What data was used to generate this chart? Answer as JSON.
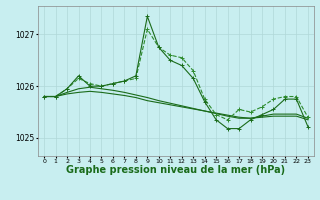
{
  "background_color": "#c8eef0",
  "grid_color": "#b0d8d8",
  "line_color_dark": "#1a6b1a",
  "line_color_medium": "#2d8b2d",
  "xlabel": "Graphe pression niveau de la mer (hPa)",
  "xlabel_fontsize": 7.0,
  "yticks": [
    1025,
    1026,
    1027
  ],
  "xticks": [
    0,
    1,
    2,
    3,
    4,
    5,
    6,
    7,
    8,
    9,
    10,
    11,
    12,
    13,
    14,
    15,
    16,
    17,
    18,
    19,
    20,
    21,
    22,
    23
  ],
  "ylim": [
    1024.65,
    1027.55
  ],
  "xlim": [
    -0.5,
    23.5
  ],
  "series1": [
    1025.8,
    1025.8,
    1025.85,
    1025.88,
    1025.9,
    1025.88,
    1025.85,
    1025.82,
    1025.78,
    1025.72,
    1025.68,
    1025.64,
    1025.6,
    1025.56,
    1025.52,
    1025.48,
    1025.44,
    1025.4,
    1025.38,
    1025.4,
    1025.42,
    1025.42,
    1025.42,
    1025.35
  ],
  "series2": [
    1025.8,
    1025.8,
    1025.88,
    1025.95,
    1025.98,
    1025.95,
    1025.92,
    1025.88,
    1025.83,
    1025.78,
    1025.72,
    1025.67,
    1025.62,
    1025.57,
    1025.52,
    1025.47,
    1025.42,
    1025.38,
    1025.38,
    1025.42,
    1025.46,
    1025.46,
    1025.46,
    1025.38
  ],
  "series3": [
    1025.8,
    1025.8,
    1025.95,
    1026.15,
    1026.05,
    1026.0,
    1026.05,
    1026.1,
    1026.15,
    1027.1,
    1026.75,
    1026.6,
    1026.55,
    1026.3,
    1025.75,
    1025.45,
    1025.35,
    1025.55,
    1025.5,
    1025.6,
    1025.75,
    1025.8,
    1025.8,
    1025.4
  ],
  "series4": [
    1025.8,
    1025.8,
    1025.95,
    1026.2,
    1026.0,
    1026.0,
    1026.05,
    1026.1,
    1026.2,
    1027.35,
    1026.75,
    1026.5,
    1026.4,
    1026.15,
    1025.7,
    1025.35,
    1025.18,
    1025.18,
    1025.35,
    1025.45,
    1025.55,
    1025.75,
    1025.75,
    1025.22
  ]
}
